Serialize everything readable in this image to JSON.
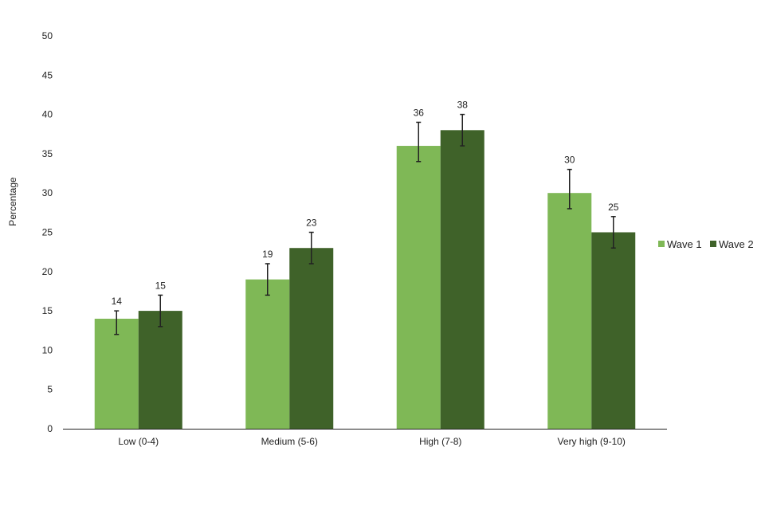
{
  "chart_data": {
    "type": "bar",
    "categories": [
      "Low (0-4)",
      "Medium (5-6)",
      "High (7-8)",
      "Very high (9-10)"
    ],
    "series": [
      {
        "name": "Wave 1",
        "color": "#7fb856",
        "values": [
          14,
          19,
          36,
          30
        ],
        "error_low": [
          12,
          17,
          34,
          28
        ],
        "error_high": [
          15,
          21,
          39,
          33
        ]
      },
      {
        "name": "Wave 2",
        "color": "#3f6229",
        "values": [
          15,
          23,
          38,
          25
        ],
        "error_low": [
          13,
          21,
          36,
          23
        ],
        "error_high": [
          17,
          25,
          40,
          27
        ]
      }
    ],
    "ylabel": "Percentage",
    "ylim": [
      0,
      50
    ],
    "yticks": [
      0,
      5,
      10,
      15,
      20,
      25,
      30,
      35,
      40,
      45,
      50
    ],
    "grid": false,
    "legend_position": "right"
  }
}
